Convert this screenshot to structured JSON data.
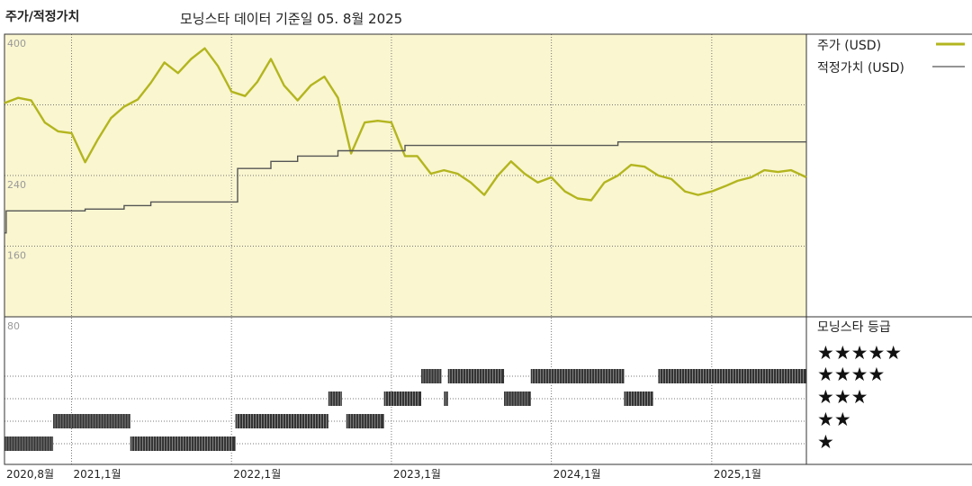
{
  "header": {
    "title": "주가/적정가치",
    "subtitle": "모닝스타 데이터 기준일 05. 8월 2025"
  },
  "legend": {
    "price_label": "주가 (USD)",
    "fair_label": "적정가치 (USD)",
    "rating_title": "모닝스타 등급",
    "stars": [
      "★★★★★",
      "★★★★",
      "★★★",
      "★★",
      "★"
    ]
  },
  "colors": {
    "price": "#b3b51f",
    "fair": "#555555",
    "plot_bg": "#faf6d0",
    "rating": "#333333"
  },
  "chart_data": [
    {
      "type": "line",
      "title": "주가/적정가치",
      "ylim": [
        80,
        400
      ],
      "yticks": [
        80,
        160,
        240,
        320,
        400
      ],
      "ytick_labels": [
        "80",
        "160",
        "240",
        "",
        "400"
      ],
      "xticks": [
        {
          "date": "2020-08-01",
          "label": "2020,8월"
        },
        {
          "date": "2021-01-01",
          "label": "2021,1월"
        },
        {
          "date": "2022-01-01",
          "label": "2022,1월"
        },
        {
          "date": "2023-01-01",
          "label": "2023,1월"
        },
        {
          "date": "2024-01-01",
          "label": "2024,1월"
        },
        {
          "date": "2025-01-01",
          "label": "2025,1월"
        }
      ],
      "xlim": [
        "2020-08-01",
        "2025-08-05"
      ],
      "series": [
        {
          "name": "주가 (USD)",
          "points": [
            [
              "2020-08-01",
              322
            ],
            [
              "2020-09-01",
              328
            ],
            [
              "2020-10-01",
              325
            ],
            [
              "2020-11-01",
              300
            ],
            [
              "2020-12-01",
              290
            ],
            [
              "2021-01-01",
              288
            ],
            [
              "2021-02-01",
              255
            ],
            [
              "2021-03-01",
              280
            ],
            [
              "2021-04-01",
              305
            ],
            [
              "2021-05-01",
              318
            ],
            [
              "2021-06-01",
              326
            ],
            [
              "2021-07-01",
              345
            ],
            [
              "2021-08-01",
              368
            ],
            [
              "2021-09-01",
              356
            ],
            [
              "2021-10-01",
              372
            ],
            [
              "2021-11-01",
              384
            ],
            [
              "2021-12-01",
              364
            ],
            [
              "2022-01-01",
              335
            ],
            [
              "2022-02-01",
              330
            ],
            [
              "2022-03-01",
              346
            ],
            [
              "2022-04-01",
              372
            ],
            [
              "2022-05-01",
              342
            ],
            [
              "2022-06-01",
              325
            ],
            [
              "2022-07-01",
              342
            ],
            [
              "2022-08-01",
              352
            ],
            [
              "2022-09-01",
              328
            ],
            [
              "2022-10-01",
              265
            ],
            [
              "2022-11-01",
              300
            ],
            [
              "2022-12-01",
              302
            ],
            [
              "2023-01-01",
              300
            ],
            [
              "2023-02-01",
              262
            ],
            [
              "2023-03-01",
              262
            ],
            [
              "2023-04-01",
              242
            ],
            [
              "2023-05-01",
              246
            ],
            [
              "2023-06-01",
              242
            ],
            [
              "2023-07-01",
              232
            ],
            [
              "2023-08-01",
              218
            ],
            [
              "2023-09-01",
              240
            ],
            [
              "2023-10-01",
              256
            ],
            [
              "2023-11-01",
              242
            ],
            [
              "2023-12-01",
              232
            ],
            [
              "2024-01-01",
              238
            ],
            [
              "2024-02-01",
              222
            ],
            [
              "2024-03-01",
              214
            ],
            [
              "2024-04-01",
              212
            ],
            [
              "2024-05-01",
              232
            ],
            [
              "2024-06-01",
              240
            ],
            [
              "2024-07-01",
              252
            ],
            [
              "2024-08-01",
              250
            ],
            [
              "2024-09-01",
              240
            ],
            [
              "2024-10-01",
              236
            ],
            [
              "2024-11-01",
              222
            ],
            [
              "2024-12-01",
              218
            ],
            [
              "2025-01-01",
              222
            ],
            [
              "2025-02-01",
              228
            ],
            [
              "2025-03-01",
              234
            ],
            [
              "2025-04-01",
              238
            ],
            [
              "2025-05-01",
              246
            ],
            [
              "2025-06-01",
              244
            ],
            [
              "2025-07-01",
              246
            ],
            [
              "2025-08-05",
              238
            ]
          ]
        },
        {
          "name": "적정가치 (USD)",
          "step": true,
          "points": [
            [
              "2020-08-01",
              175
            ],
            [
              "2020-08-05",
              200
            ],
            [
              "2021-02-01",
              202
            ],
            [
              "2021-05-01",
              206
            ],
            [
              "2021-07-01",
              210
            ],
            [
              "2022-01-15",
              248
            ],
            [
              "2022-04-01",
              256
            ],
            [
              "2022-06-01",
              262
            ],
            [
              "2022-09-01",
              268
            ],
            [
              "2023-01-01",
              268
            ],
            [
              "2023-02-01",
              274
            ],
            [
              "2023-06-01",
              274
            ],
            [
              "2023-08-01",
              274
            ],
            [
              "2024-03-01",
              274
            ],
            [
              "2024-06-01",
              278
            ],
            [
              "2024-09-01",
              278
            ],
            [
              "2025-08-05",
              278
            ]
          ]
        }
      ]
    },
    {
      "type": "bar",
      "title": "모닝스타 등급",
      "rating_levels": [
        1,
        2,
        3,
        4,
        5
      ],
      "series": [
        {
          "name": "모닝스타 등급",
          "segments": [
            {
              "start": "2020-08-01",
              "end": "2020-11-20",
              "rating": 1
            },
            {
              "start": "2020-11-20",
              "end": "2021-05-15",
              "rating": 2
            },
            {
              "start": "2021-05-15",
              "end": "2022-01-10",
              "rating": 1
            },
            {
              "start": "2022-01-10",
              "end": "2022-08-10",
              "rating": 2
            },
            {
              "start": "2022-08-10",
              "end": "2022-09-10",
              "rating": 3
            },
            {
              "start": "2022-09-20",
              "end": "2022-12-15",
              "rating": 2
            },
            {
              "start": "2022-12-15",
              "end": "2023-03-10",
              "rating": 3
            },
            {
              "start": "2023-03-10",
              "end": "2023-04-25",
              "rating": 4
            },
            {
              "start": "2023-05-01",
              "end": "2023-05-10",
              "rating": 3
            },
            {
              "start": "2023-05-10",
              "end": "2023-09-15",
              "rating": 4
            },
            {
              "start": "2023-09-15",
              "end": "2023-11-15",
              "rating": 3
            },
            {
              "start": "2023-11-15",
              "end": "2024-06-15",
              "rating": 4
            },
            {
              "start": "2024-06-15",
              "end": "2024-08-20",
              "rating": 3
            },
            {
              "start": "2024-09-01",
              "end": "2025-08-05",
              "rating": 4
            }
          ]
        }
      ]
    }
  ]
}
